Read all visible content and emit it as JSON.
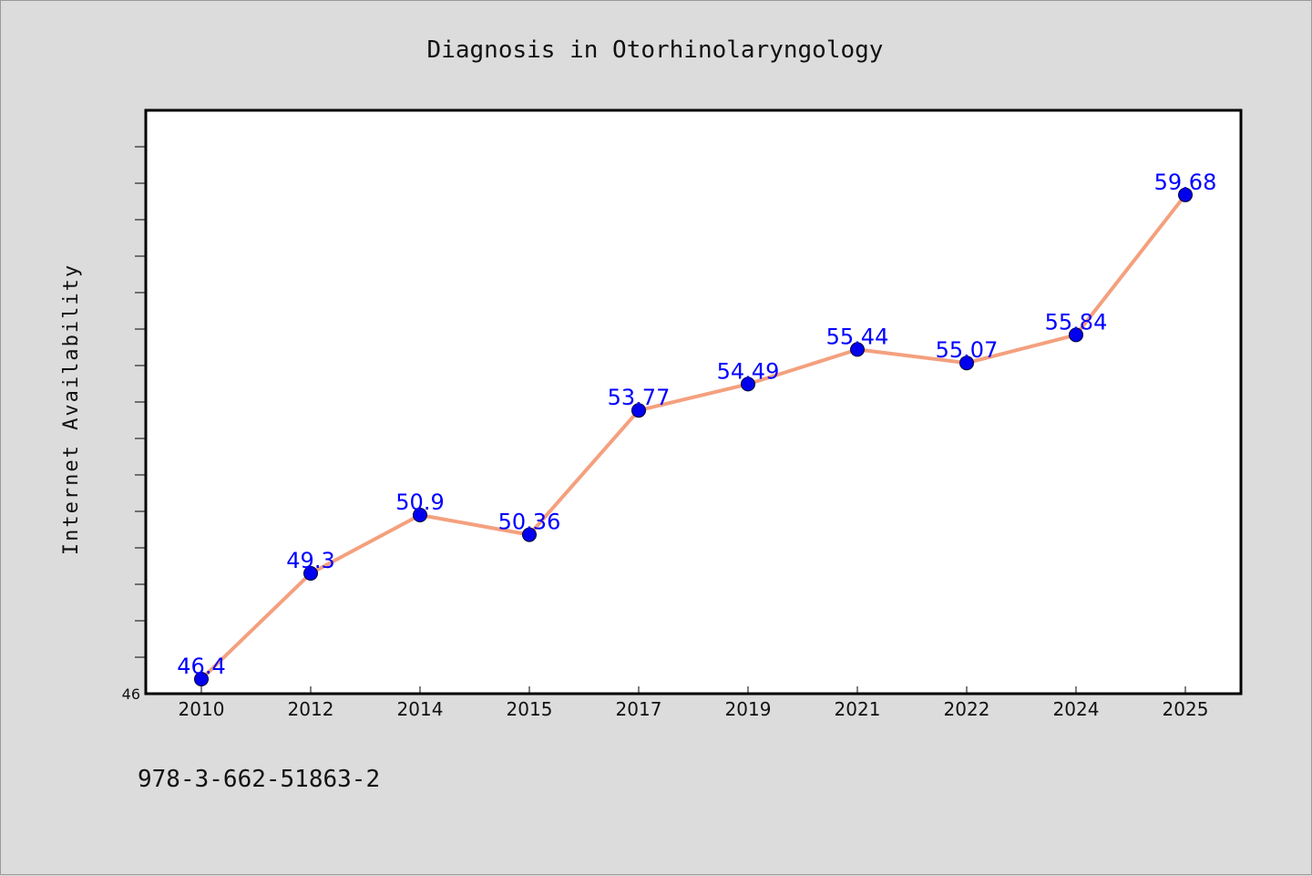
{
  "chart_data": {
    "type": "line",
    "title": "Diagnosis in Otorhinolaryngology",
    "xlabel": "",
    "ylabel": "Internet Availability",
    "categories": [
      "2010",
      "2012",
      "2014",
      "2015",
      "2017",
      "2019",
      "2021",
      "2022",
      "2024",
      "2025"
    ],
    "series": [
      {
        "values": [
          46.4,
          49.3,
          50.9,
          50.36,
          53.77,
          54.49,
          55.44,
          55.07,
          55.84,
          59.68
        ],
        "data_labels": [
          "46.4",
          "49.3",
          "50.9",
          "50.36",
          "53.77",
          "54.49",
          "55.44",
          "55.07",
          "55.84",
          "59.68"
        ],
        "line_color": "#f4a07e",
        "marker_color": "#0000ee"
      }
    ],
    "ylim": [
      46,
      62
    ],
    "yticks_labeled": [
      "46"
    ],
    "grid": false,
    "legend": "none"
  },
  "footer": {
    "text": "978-3-662-51863-2"
  },
  "colors": {
    "background": "#dcdcdc",
    "plot_background": "#ffffff",
    "data_label": "#0000ff"
  }
}
